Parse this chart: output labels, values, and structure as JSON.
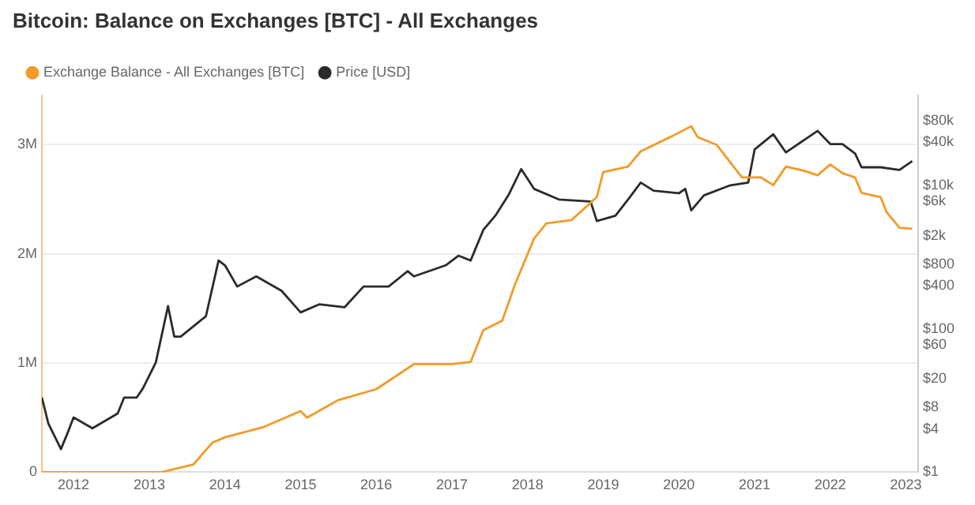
{
  "chart_data": {
    "type": "line",
    "title": "Bitcoin: Balance on Exchanges [BTC] - All Exchanges",
    "xlim": [
      "2011-08",
      "2023-03"
    ],
    "xticks": [
      "2012",
      "2013",
      "2014",
      "2015",
      "2016",
      "2017",
      "2018",
      "2019",
      "2020",
      "2021",
      "2022",
      "2023"
    ],
    "ylim": [
      0,
      3450000
    ],
    "yticks": [
      {
        "value": 0,
        "label": "0"
      },
      {
        "value": 1000000,
        "label": "1M"
      },
      {
        "value": 2000000,
        "label": "2M"
      },
      {
        "value": 3000000,
        "label": "3M"
      }
    ],
    "y2lim": [
      1,
      180000
    ],
    "y2ticks": [
      {
        "value": 1,
        "label": "$1"
      },
      {
        "value": 4,
        "label": "$4"
      },
      {
        "value": 8,
        "label": "$8"
      },
      {
        "value": 20,
        "label": "$20"
      },
      {
        "value": 60,
        "label": "$60"
      },
      {
        "value": 100,
        "label": "$100"
      },
      {
        "value": 400,
        "label": "$400"
      },
      {
        "value": 800,
        "label": "$800"
      },
      {
        "value": 2000,
        "label": "$2k"
      },
      {
        "value": 6000,
        "label": "$6k"
      },
      {
        "value": 10000,
        "label": "$10k"
      },
      {
        "value": 40000,
        "label": "$40k"
      },
      {
        "value": 80000,
        "label": "$80k"
      }
    ],
    "log": "y2",
    "grid": "y",
    "legend": "top left",
    "marker": "none",
    "line_style": "solid",
    "series": [
      {
        "name": "Exchange Balance - All Exchanges [BTC]",
        "color": "#f39a28",
        "x": [
          "2011-08",
          "2012-06",
          "2013-03",
          "2013-08",
          "2013-11",
          "2014-01",
          "2014-07",
          "2015-01",
          "2015-02",
          "2015-07",
          "2016-01",
          "2016-07",
          "2017-01",
          "2017-04",
          "2017-06",
          "2017-09",
          "2017-11",
          "2018-02",
          "2018-04",
          "2018-08",
          "2018-12",
          "2019-01",
          "2019-05",
          "2019-07",
          "2019-12",
          "2020-03",
          "2020-04",
          "2020-07",
          "2020-11",
          "2021-02",
          "2021-04",
          "2021-06",
          "2021-09",
          "2021-11",
          "2022-01",
          "2022-03",
          "2022-05",
          "2022-06",
          "2022-09",
          "2022-10",
          "2022-12",
          "2023-02"
        ],
        "values": [
          0,
          0,
          0,
          70000,
          270000,
          320000,
          410000,
          560000,
          500000,
          660000,
          760000,
          990000,
          990000,
          1010000,
          1300000,
          1390000,
          1720000,
          2140000,
          2280000,
          2310000,
          2520000,
          2750000,
          2800000,
          2940000,
          3080000,
          3170000,
          3070000,
          3000000,
          2700000,
          2700000,
          2630000,
          2800000,
          2760000,
          2720000,
          2820000,
          2740000,
          2700000,
          2560000,
          2520000,
          2380000,
          2240000,
          2230000
        ]
      },
      {
        "name": "Price [USD]",
        "color": "#2b2b2b",
        "axis": "y2",
        "x": [
          "2011-08",
          "2011-09",
          "2011-11",
          "2011-12",
          "2012-01",
          "2012-04",
          "2012-08",
          "2012-09",
          "2012-11",
          "2012-12",
          "2013-02",
          "2013-04",
          "2013-05",
          "2013-06",
          "2013-09",
          "2013-10",
          "2013-12",
          "2014-01",
          "2014-03",
          "2014-06",
          "2014-10",
          "2015-01",
          "2015-04",
          "2015-08",
          "2015-11",
          "2016-03",
          "2016-06",
          "2016-07",
          "2016-12",
          "2017-02",
          "2017-04",
          "2017-06",
          "2017-08",
          "2017-10",
          "2017-12",
          "2018-02",
          "2018-06",
          "2018-11",
          "2018-12",
          "2019-03",
          "2019-05",
          "2019-07",
          "2019-09",
          "2020-01",
          "2020-02",
          "2020-03",
          "2020-05",
          "2020-09",
          "2020-12",
          "2021-01",
          "2021-04",
          "2021-06",
          "2021-11",
          "2022-01",
          "2022-03",
          "2022-05",
          "2022-06",
          "2022-09",
          "2022-12",
          "2023-02"
        ],
        "values": [
          11,
          4.8,
          2.1,
          3.4,
          5.8,
          4.1,
          6.6,
          11,
          11,
          14.8,
          34,
          208,
          78,
          78,
          128,
          150,
          900,
          770,
          390,
          540,
          340,
          170,
          220,
          200,
          390,
          390,
          640,
          540,
          770,
          1050,
          900,
          2400,
          3900,
          7400,
          17000,
          9000,
          6400,
          6000,
          3200,
          3800,
          6400,
          11000,
          8500,
          7800,
          9000,
          4500,
          7300,
          10000,
          11000,
          32000,
          52000,
          29000,
          58000,
          38000,
          38000,
          28000,
          18000,
          18000,
          16500,
          22000
        ]
      }
    ]
  }
}
